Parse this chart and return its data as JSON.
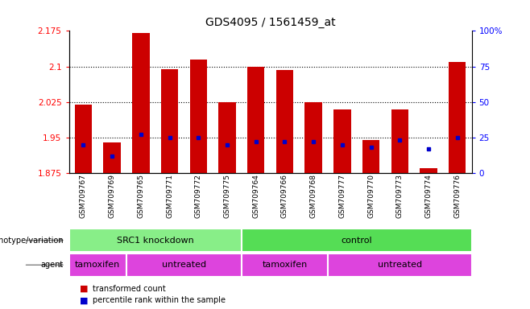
{
  "title": "GDS4095 / 1561459_at",
  "samples": [
    "GSM709767",
    "GSM709769",
    "GSM709765",
    "GSM709771",
    "GSM709772",
    "GSM709775",
    "GSM709764",
    "GSM709766",
    "GSM709768",
    "GSM709777",
    "GSM709770",
    "GSM709773",
    "GSM709774",
    "GSM709776"
  ],
  "bar_values": [
    2.02,
    1.94,
    2.17,
    2.095,
    2.115,
    2.025,
    2.1,
    2.093,
    2.025,
    2.01,
    1.945,
    2.01,
    1.885,
    2.11
  ],
  "percentile_values": [
    20,
    12,
    27,
    25,
    25,
    20,
    22,
    22,
    22,
    20,
    18,
    23,
    17,
    25
  ],
  "ymin": 1.875,
  "ymax": 2.175,
  "yticks": [
    1.875,
    1.95,
    2.025,
    2.1,
    2.175
  ],
  "ytick_labels": [
    "1.875",
    "1.95",
    "2.025",
    "2.1",
    "2.175"
  ],
  "right_yticks": [
    0,
    25,
    50,
    75,
    100
  ],
  "right_ytick_labels": [
    "0",
    "25",
    "50",
    "75",
    "100%"
  ],
  "bar_color": "#cc0000",
  "dot_color": "#0000cc",
  "genotype_groups": [
    {
      "label": "SRC1 knockdown",
      "start": 0,
      "end": 6,
      "color": "#88ee88"
    },
    {
      "label": "control",
      "start": 6,
      "end": 14,
      "color": "#55dd55"
    }
  ],
  "agent_groups": [
    {
      "label": "tamoxifen",
      "start": 0,
      "end": 2,
      "color": "#dd44dd"
    },
    {
      "label": "untreated",
      "start": 2,
      "end": 6,
      "color": "#dd44dd"
    },
    {
      "label": "tamoxifen",
      "start": 6,
      "end": 9,
      "color": "#dd44dd"
    },
    {
      "label": "untreated",
      "start": 9,
      "end": 14,
      "color": "#dd44dd"
    }
  ],
  "legend_items": [
    {
      "label": "transformed count",
      "color": "#cc0000"
    },
    {
      "label": "percentile rank within the sample",
      "color": "#0000cc"
    }
  ],
  "grid_yticks": [
    1.95,
    2.025,
    2.1
  ],
  "xtick_bg_color": "#cccccc"
}
